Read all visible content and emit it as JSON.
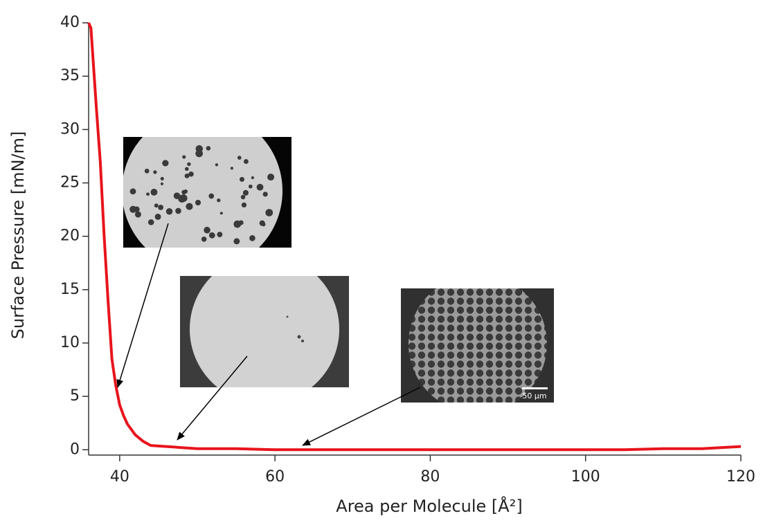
{
  "chart_data": {
    "type": "line",
    "x_label": "Area per Molecule [Å²]",
    "y_label": "Surface Pressure [mN/m]",
    "inset_scale_label": "50 µm",
    "xlim": [
      36,
      120
    ],
    "ylim": [
      -0.5,
      40
    ],
    "xticks": [
      40,
      60,
      80,
      100,
      120
    ],
    "yticks": [
      0,
      5,
      10,
      15,
      20,
      25,
      30,
      35,
      40
    ],
    "x": [
      36,
      36.3,
      37,
      37.5,
      38,
      38.5,
      39,
      39.5,
      40,
      40.5,
      41,
      42,
      43,
      44,
      46,
      48,
      50,
      55,
      60,
      65,
      70,
      75,
      80,
      85,
      90,
      95,
      100,
      105,
      110,
      115,
      120
    ],
    "series": [
      {
        "color": "#e8141c",
        "values": [
          40,
          39.5,
          32,
          27,
          20,
          14,
          8.5,
          6,
          4.2,
          3.2,
          2.4,
          1.4,
          0.8,
          0.4,
          0.3,
          0.2,
          0.1,
          0.1,
          0,
          0,
          0,
          0,
          0,
          0,
          0,
          0,
          0,
          0,
          0.1,
          0.1,
          0.3
        ]
      }
    ]
  }
}
